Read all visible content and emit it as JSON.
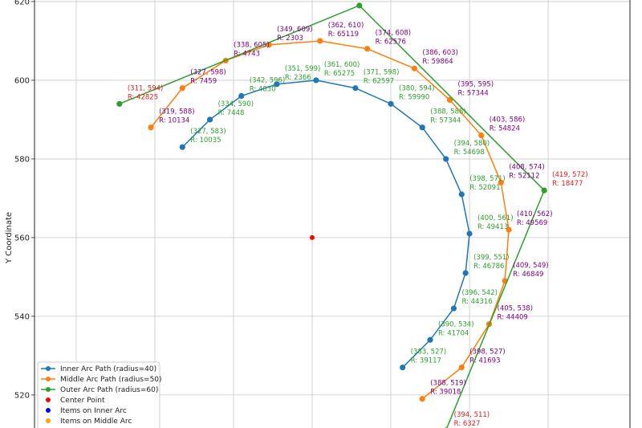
{
  "chart_data": {
    "type": "line",
    "title": "",
    "xlabel": "",
    "ylabel": "Y Coordinate",
    "xlim": [
      289.4,
      440.8
    ],
    "ylim": [
      511.6,
      620.4
    ],
    "yticks": [
      520,
      540,
      560,
      580,
      600,
      620
    ],
    "xgrid": [
      300,
      320,
      340,
      360,
      380,
      400,
      420
    ],
    "grid": true,
    "legend_placement": "lower-left",
    "series": [
      {
        "name": "Inner Arc Path (radius=40)",
        "color": "#1f77b4",
        "label_color": "#2ca02c",
        "points": [
          {
            "x": 327,
            "y": 583,
            "label": "(327, 583)",
            "r": "R: 10035"
          },
          {
            "x": 334,
            "y": 590,
            "label": "(334, 590)",
            "r": "R: 7448"
          },
          {
            "x": 342,
            "y": 596,
            "label": "(342, 596)",
            "r": "R: 4830"
          },
          {
            "x": 351,
            "y": 599,
            "label": "(351, 599)",
            "r": "R: 2366"
          },
          {
            "x": 361,
            "y": 600,
            "label": "(361, 600)",
            "r": "R: 65275"
          },
          {
            "x": 371,
            "y": 598,
            "label": "(371, 598)",
            "r": "R: 62597"
          },
          {
            "x": 380,
            "y": 594,
            "label": "(380, 594)",
            "r": "R: 59990"
          },
          {
            "x": 388,
            "y": 588,
            "label": "(388, 588)",
            "r": "R: 57344"
          },
          {
            "x": 394,
            "y": 580,
            "label": "(394, 580)",
            "r": "R: 54698"
          },
          {
            "x": 398,
            "y": 571,
            "label": "(398, 571)",
            "r": "R: 52091"
          },
          {
            "x": 400,
            "y": 561,
            "label": "(400, 561)",
            "r": "R: 49413"
          },
          {
            "x": 399,
            "y": 551,
            "label": "(399, 551)",
            "r": "R: 46786"
          },
          {
            "x": 396,
            "y": 542,
            "label": "(396, 542)",
            "r": "R: 44316"
          },
          {
            "x": 390,
            "y": 534,
            "label": "(390, 534)",
            "r": "R: 41704"
          },
          {
            "x": 383,
            "y": 527,
            "label": "(383, 527)",
            "r": "R: 39117"
          }
        ]
      },
      {
        "name": "Middle Arc Path (radius=50)",
        "color": "#ff7f0e",
        "label_color": "#800080",
        "points": [
          {
            "x": 319,
            "y": 588,
            "label": "(319, 588)",
            "r": "R: 10134"
          },
          {
            "x": 327,
            "y": 598,
            "label": "(327, 598)",
            "r": "R: 7459"
          },
          {
            "x": 338,
            "y": 605,
            "label": "(338, 605)",
            "r": "R: 4743"
          },
          {
            "x": 349,
            "y": 609,
            "label": "(349, 609)",
            "r": "R: 2303"
          },
          {
            "x": 362,
            "y": 610,
            "label": "(362, 610)",
            "r": "R: 65119"
          },
          {
            "x": 374,
            "y": 608,
            "label": "(374, 608)",
            "r": "R: 62576"
          },
          {
            "x": 386,
            "y": 603,
            "label": "(386, 603)",
            "r": "R: 59864"
          },
          {
            "x": 395,
            "y": 595,
            "label": "(395, 595)",
            "r": "R: 57344"
          },
          {
            "x": 403,
            "y": 586,
            "label": "(403, 586)",
            "r": "R: 54824"
          },
          {
            "x": 408,
            "y": 574,
            "label": "(408, 574)",
            "r": "R: 52112"
          },
          {
            "x": 410,
            "y": 562,
            "label": "(410, 562)",
            "r": "R: 49569"
          },
          {
            "x": 409,
            "y": 549,
            "label": "(409, 549)",
            "r": "R: 46849"
          },
          {
            "x": 405,
            "y": 538,
            "label": "(405, 538)",
            "r": "R: 44409"
          },
          {
            "x": 398,
            "y": 527,
            "label": "(398, 527)",
            "r": "R: 41693"
          },
          {
            "x": 388,
            "y": 519,
            "label": "(388, 519)",
            "r": "R: 39018"
          }
        ]
      },
      {
        "name": "Outer Arc Path (radius=60)",
        "color": "#2ca02c",
        "label_color": "#e41a1c",
        "points": [
          {
            "x": 311,
            "y": 594,
            "label": "(311, 594)",
            "r": "R: 42825"
          },
          {
            "x": 372,
            "y": 619
          },
          {
            "x": 419,
            "y": 572,
            "label": "(419, 572)",
            "r": "R: 18477"
          },
          {
            "x": 394,
            "y": 511,
            "label": "(394, 511)",
            "r": "R: 6327"
          }
        ]
      }
    ],
    "scatter": [
      {
        "name": "Center Point",
        "color": "#ff0000",
        "points": [
          {
            "x": 360,
            "y": 560
          }
        ]
      },
      {
        "name": "Items on Inner Arc",
        "color": "#0000ff",
        "points": []
      },
      {
        "name": "Items on Middle Arc",
        "color": "#ffa500",
        "points": []
      }
    ]
  }
}
